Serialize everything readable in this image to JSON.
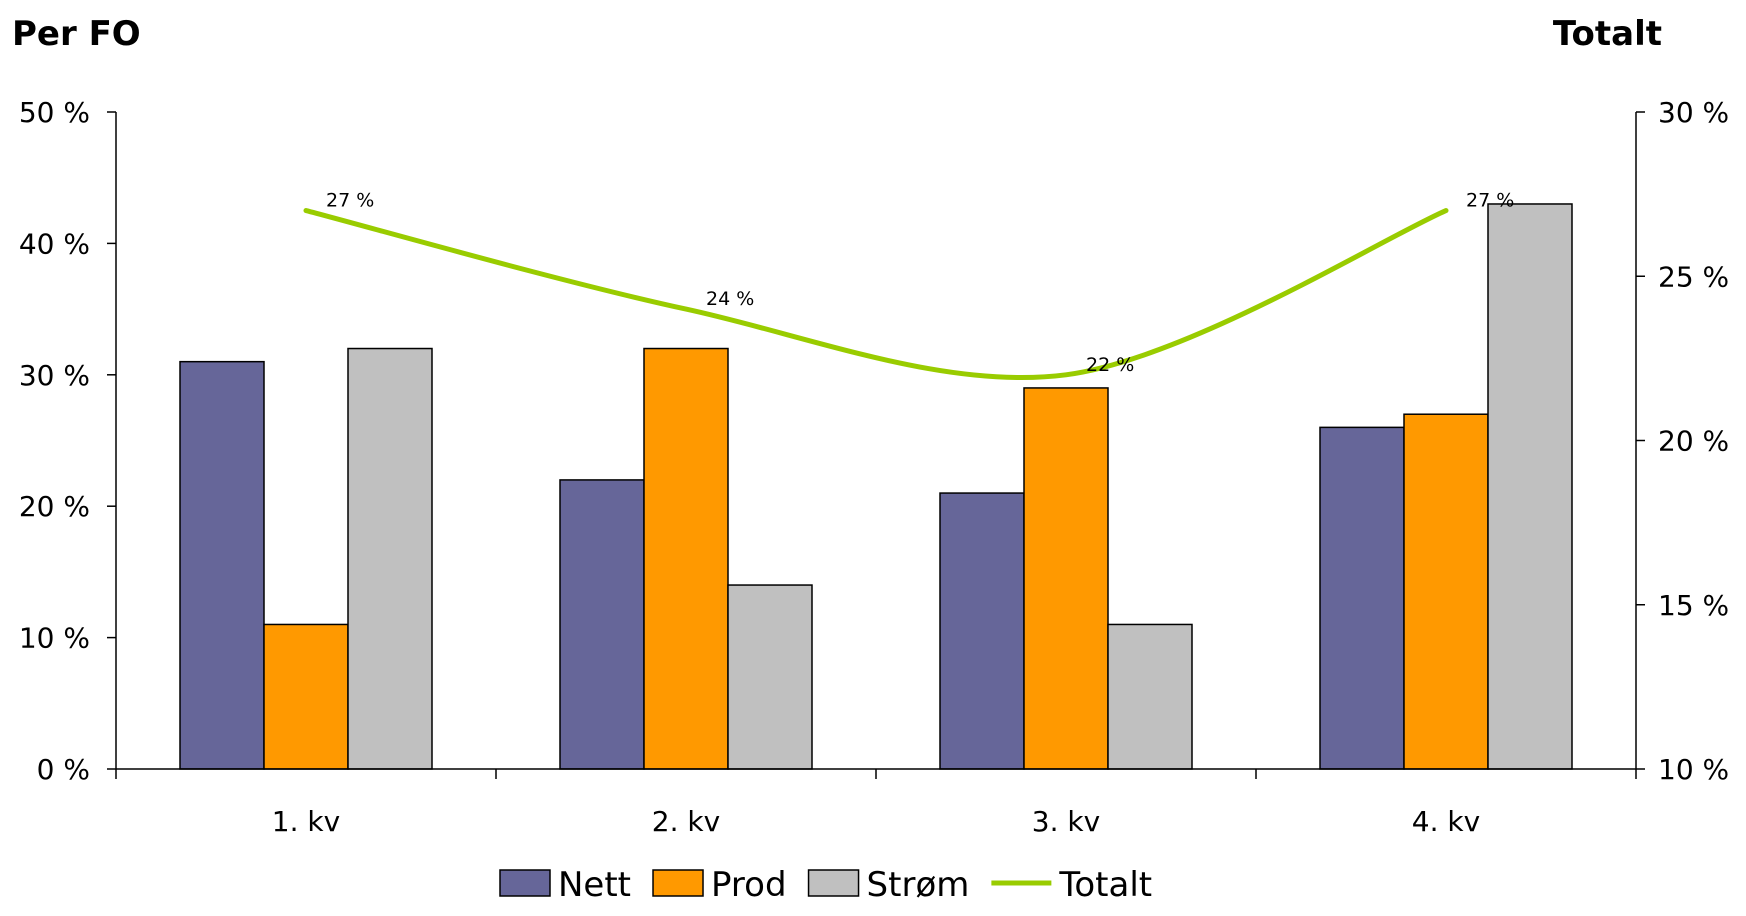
{
  "chart_data": {
    "type": "bar",
    "categories": [
      "1. kv",
      "2. kv",
      "3. kv",
      "4. kv"
    ],
    "series": [
      {
        "name": "Nett",
        "type": "bar",
        "axis": "left",
        "color": "#666699",
        "values": [
          31,
          22,
          21,
          26
        ]
      },
      {
        "name": "Prod",
        "type": "bar",
        "axis": "left",
        "color": "#FF9900",
        "values": [
          11,
          32,
          29,
          27
        ]
      },
      {
        "name": "Strøm",
        "type": "bar",
        "axis": "left",
        "color": "#C0C0C0",
        "values": [
          32,
          14,
          11,
          43
        ]
      },
      {
        "name": "Totalt",
        "type": "line",
        "axis": "right",
        "color": "#99CC00",
        "values": [
          27,
          24,
          22,
          27
        ],
        "data_labels": [
          "27 %",
          "24 %",
          "22 %",
          "27 %"
        ]
      }
    ],
    "left_axis": {
      "title": "Per FO",
      "min": 0,
      "max": 50,
      "step": 10,
      "unit": " %",
      "tick_labels": [
        "0 %",
        "10 %",
        "20 %",
        "30 %",
        "40 %",
        "50 %"
      ]
    },
    "right_axis": {
      "title": "Totalt",
      "min": 10,
      "max": 30,
      "step": 5,
      "unit": " %",
      "tick_labels": [
        "10 %",
        "15 %",
        "20 %",
        "25 %",
        "30 %"
      ]
    },
    "grid": false,
    "legend_position": "bottom"
  }
}
